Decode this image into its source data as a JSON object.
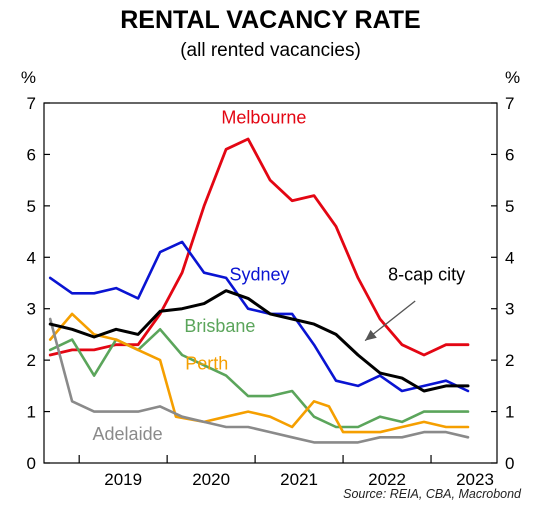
{
  "chart_data": {
    "type": "line",
    "title": "RENTAL VACANCY RATE",
    "subtitle": "(all rented vacancies)",
    "y_unit_left": "%",
    "y_unit_right": "%",
    "ylim": [
      0,
      7
    ],
    "yticks": [
      0,
      1,
      2,
      3,
      4,
      5,
      6,
      7
    ],
    "xlim": [
      2018.6,
      2023.75
    ],
    "xticks": [
      {
        "label": "2019",
        "value": 2019
      },
      {
        "label": "2020",
        "value": 2020
      },
      {
        "label": "2021",
        "value": 2021
      },
      {
        "label": "2022",
        "value": 2022
      },
      {
        "label": "2023",
        "value": 2023
      }
    ],
    "grid": false,
    "source": "Source: REIA, CBA, Macrobond",
    "series": [
      {
        "name": "Melbourne",
        "color": "#e30613",
        "width": 2.8,
        "label_pos": {
          "x": 2021.1,
          "y": 6.6
        },
        "points": [
          [
            2018.67,
            2.1
          ],
          [
            2018.92,
            2.2
          ],
          [
            2019.17,
            2.2
          ],
          [
            2019.42,
            2.3
          ],
          [
            2019.67,
            2.3
          ],
          [
            2019.92,
            2.9
          ],
          [
            2020.17,
            3.7
          ],
          [
            2020.42,
            5.0
          ],
          [
            2020.67,
            6.1
          ],
          [
            2020.92,
            6.3
          ],
          [
            2021.17,
            5.5
          ],
          [
            2021.42,
            5.1
          ],
          [
            2021.67,
            5.2
          ],
          [
            2021.92,
            4.6
          ],
          [
            2022.17,
            3.6
          ],
          [
            2022.42,
            2.8
          ],
          [
            2022.67,
            2.3
          ],
          [
            2022.92,
            2.1
          ],
          [
            2023.17,
            2.3
          ],
          [
            2023.42,
            2.3
          ]
        ]
      },
      {
        "name": "Sydney",
        "color": "#0a14d2",
        "width": 2.6,
        "label_pos": {
          "x": 2021.05,
          "y": 3.55
        },
        "points": [
          [
            2018.67,
            3.6
          ],
          [
            2018.92,
            3.3
          ],
          [
            2019.17,
            3.3
          ],
          [
            2019.42,
            3.4
          ],
          [
            2019.67,
            3.2
          ],
          [
            2019.92,
            4.1
          ],
          [
            2020.17,
            4.3
          ],
          [
            2020.42,
            3.7
          ],
          [
            2020.67,
            3.6
          ],
          [
            2020.92,
            3.0
          ],
          [
            2021.17,
            2.9
          ],
          [
            2021.42,
            2.9
          ],
          [
            2021.67,
            2.3
          ],
          [
            2021.92,
            1.6
          ],
          [
            2022.17,
            1.5
          ],
          [
            2022.42,
            1.7
          ],
          [
            2022.67,
            1.4
          ],
          [
            2022.92,
            1.5
          ],
          [
            2023.17,
            1.6
          ],
          [
            2023.42,
            1.4
          ]
        ]
      },
      {
        "name": "Brisbane",
        "color": "#5ba55b",
        "width": 2.6,
        "label_pos": {
          "x": 2020.6,
          "y": 2.55
        },
        "points": [
          [
            2018.67,
            2.2
          ],
          [
            2018.92,
            2.4
          ],
          [
            2019.17,
            1.7
          ],
          [
            2019.42,
            2.4
          ],
          [
            2019.67,
            2.2
          ],
          [
            2019.92,
            2.6
          ],
          [
            2020.17,
            2.1
          ],
          [
            2020.42,
            1.9
          ],
          [
            2020.67,
            1.7
          ],
          [
            2020.92,
            1.3
          ],
          [
            2021.17,
            1.3
          ],
          [
            2021.42,
            1.4
          ],
          [
            2021.67,
            0.9
          ],
          [
            2021.92,
            0.7
          ],
          [
            2022.17,
            0.7
          ],
          [
            2022.42,
            0.9
          ],
          [
            2022.67,
            0.8
          ],
          [
            2022.92,
            1.0
          ],
          [
            2023.17,
            1.0
          ],
          [
            2023.42,
            1.0
          ]
        ]
      },
      {
        "name": "Perth",
        "color": "#f59f00",
        "width": 2.6,
        "label_pos": {
          "x": 2020.45,
          "y": 1.82
        },
        "points": [
          [
            2018.67,
            2.4
          ],
          [
            2018.92,
            2.9
          ],
          [
            2019.17,
            2.5
          ],
          [
            2019.42,
            2.4
          ],
          [
            2019.67,
            2.2
          ],
          [
            2019.92,
            2.0
          ],
          [
            2020.1,
            0.9
          ],
          [
            2020.42,
            0.8
          ],
          [
            2020.67,
            0.9
          ],
          [
            2020.92,
            1.0
          ],
          [
            2021.17,
            0.9
          ],
          [
            2021.42,
            0.7
          ],
          [
            2021.67,
            1.2
          ],
          [
            2021.84,
            1.1
          ],
          [
            2022.0,
            0.6
          ],
          [
            2022.42,
            0.6
          ],
          [
            2022.67,
            0.7
          ],
          [
            2022.92,
            0.8
          ],
          [
            2023.17,
            0.7
          ],
          [
            2023.42,
            0.7
          ]
        ]
      },
      {
        "name": "Adelaide",
        "color": "#8a8a8a",
        "width": 2.6,
        "label_pos": {
          "x": 2019.55,
          "y": 0.45
        },
        "points": [
          [
            2018.67,
            2.8
          ],
          [
            2018.92,
            1.2
          ],
          [
            2019.17,
            1.0
          ],
          [
            2019.42,
            1.0
          ],
          [
            2019.67,
            1.0
          ],
          [
            2019.92,
            1.1
          ],
          [
            2020.17,
            0.9
          ],
          [
            2020.42,
            0.8
          ],
          [
            2020.67,
            0.7
          ],
          [
            2020.92,
            0.7
          ],
          [
            2021.17,
            0.6
          ],
          [
            2021.42,
            0.5
          ],
          [
            2021.67,
            0.4
          ],
          [
            2021.92,
            0.4
          ],
          [
            2022.17,
            0.4
          ],
          [
            2022.42,
            0.5
          ],
          [
            2022.67,
            0.5
          ],
          [
            2022.92,
            0.6
          ],
          [
            2023.17,
            0.6
          ],
          [
            2023.42,
            0.5
          ]
        ]
      },
      {
        "name": "8-cap city",
        "color": "#000000",
        "width": 3.0,
        "label_pos": {
          "x": 2022.95,
          "y": 3.55
        },
        "points": [
          [
            2018.67,
            2.7
          ],
          [
            2018.92,
            2.6
          ],
          [
            2019.17,
            2.45
          ],
          [
            2019.42,
            2.6
          ],
          [
            2019.67,
            2.5
          ],
          [
            2019.92,
            2.95
          ],
          [
            2020.17,
            3.0
          ],
          [
            2020.42,
            3.1
          ],
          [
            2020.67,
            3.35
          ],
          [
            2020.92,
            3.2
          ],
          [
            2021.17,
            2.9
          ],
          [
            2021.42,
            2.8
          ],
          [
            2021.67,
            2.7
          ],
          [
            2021.92,
            2.5
          ],
          [
            2022.17,
            2.1
          ],
          [
            2022.42,
            1.75
          ],
          [
            2022.67,
            1.65
          ],
          [
            2022.92,
            1.4
          ],
          [
            2023.17,
            1.5
          ],
          [
            2023.42,
            1.5
          ]
        ]
      }
    ],
    "annotation_arrow": {
      "from": {
        "x": 2022.82,
        "y": 3.15
      },
      "to": {
        "x": 2022.25,
        "y": 2.38
      }
    }
  }
}
